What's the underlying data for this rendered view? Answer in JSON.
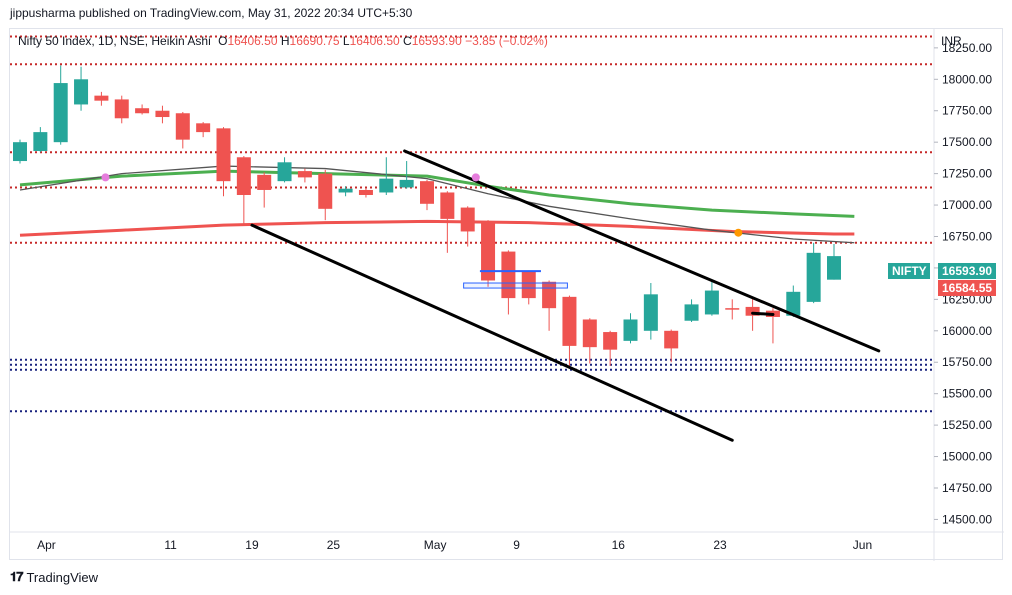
{
  "header": {
    "publisher_line": "jippusharma published on TradingView.com, May 31, 2022 20:34 UTC+5:30"
  },
  "legend": {
    "symbol": "Nifty 50 Index, 1D, NSE, Heikin Ashi",
    "open_label": "O",
    "open": "16406.50",
    "high_label": "H",
    "high": "16690.75",
    "low_label": "L",
    "low": "16406.50",
    "close_label": "C",
    "close": "16593.90",
    "change": "−3.85 (−0.02%)"
  },
  "axis": {
    "currency": "INR"
  },
  "price_labels": {
    "symbol_tag": "NIFTY",
    "last_price": "16593.90",
    "ha_close": "16584.55"
  },
  "footer": {
    "brand": "TradingView"
  },
  "colors": {
    "up": "#26a69a",
    "down": "#ef5350",
    "ma_red": "#ef5350",
    "ma_green": "#4caf50",
    "ma_gray": "#555555",
    "level_red": "#c62828",
    "level_blue": "#1a237e",
    "trendline": "#000000"
  },
  "chart_data": {
    "type": "candlestick",
    "subtype": "heikin-ashi",
    "ylim": [
      14400,
      18400
    ],
    "ytick_labels": [
      "18250.00",
      "18000.00",
      "17750.00",
      "17500.00",
      "17250.00",
      "17000.00",
      "16750.00",
      "16500.00",
      "16250.00",
      "16000.00",
      "15750.00",
      "15500.00",
      "15250.00",
      "15000.00",
      "14750.00",
      "14500.00"
    ],
    "yticks": [
      18250,
      18000,
      17750,
      17500,
      17250,
      17000,
      16750,
      16500,
      16250,
      16000,
      15750,
      15500,
      15250,
      15000,
      14750,
      14500
    ],
    "xtick_labels": [
      {
        "label": "Apr",
        "bar": 1.3
      },
      {
        "label": "11",
        "bar": 7.4
      },
      {
        "label": "19",
        "bar": 11.4
      },
      {
        "label": "25",
        "bar": 15.4
      },
      {
        "label": "May",
        "bar": 20.4
      },
      {
        "label": "9",
        "bar": 24.4
      },
      {
        "label": "16",
        "bar": 29.4
      },
      {
        "label": "23",
        "bar": 34.4
      },
      {
        "label": "Jun",
        "bar": 41.4
      }
    ],
    "candles": [
      {
        "o": 17350,
        "h": 17520,
        "l": 17330,
        "c": 17500
      },
      {
        "o": 17430,
        "h": 17620,
        "l": 17420,
        "c": 17580
      },
      {
        "o": 17500,
        "h": 18110,
        "l": 17480,
        "c": 17970
      },
      {
        "o": 17800,
        "h": 18100,
        "l": 17750,
        "c": 18000
      },
      {
        "o": 17870,
        "h": 17900,
        "l": 17790,
        "c": 17830
      },
      {
        "o": 17840,
        "h": 17870,
        "l": 17650,
        "c": 17690
      },
      {
        "o": 17770,
        "h": 17800,
        "l": 17720,
        "c": 17730
      },
      {
        "o": 17750,
        "h": 17790,
        "l": 17650,
        "c": 17700
      },
      {
        "o": 17730,
        "h": 17740,
        "l": 17450,
        "c": 17520
      },
      {
        "o": 17650,
        "h": 17660,
        "l": 17540,
        "c": 17580
      },
      {
        "o": 17610,
        "h": 17620,
        "l": 17070,
        "c": 17190
      },
      {
        "o": 17380,
        "h": 17390,
        "l": 16850,
        "c": 17080
      },
      {
        "o": 17240,
        "h": 17260,
        "l": 16980,
        "c": 17120
      },
      {
        "o": 17190,
        "h": 17380,
        "l": 17180,
        "c": 17340
      },
      {
        "o": 17270,
        "h": 17290,
        "l": 17180,
        "c": 17220
      },
      {
        "o": 17250,
        "h": 17280,
        "l": 16880,
        "c": 16970
      },
      {
        "o": 17100,
        "h": 17150,
        "l": 17070,
        "c": 17130
      },
      {
        "o": 17120,
        "h": 17130,
        "l": 17060,
        "c": 17080
      },
      {
        "o": 17100,
        "h": 17380,
        "l": 17080,
        "c": 17210
      },
      {
        "o": 17140,
        "h": 17350,
        "l": 17130,
        "c": 17200
      },
      {
        "o": 17190,
        "h": 17200,
        "l": 16960,
        "c": 17010
      },
      {
        "o": 17100,
        "h": 17110,
        "l": 16620,
        "c": 16890
      },
      {
        "o": 16980,
        "h": 16990,
        "l": 16670,
        "c": 16790
      },
      {
        "o": 16870,
        "h": 16880,
        "l": 16350,
        "c": 16400
      },
      {
        "o": 16630,
        "h": 16640,
        "l": 16130,
        "c": 16260
      },
      {
        "o": 16470,
        "h": 16480,
        "l": 16210,
        "c": 16260
      },
      {
        "o": 16390,
        "h": 16400,
        "l": 16000,
        "c": 16180
      },
      {
        "o": 16270,
        "h": 16280,
        "l": 15700,
        "c": 15880
      },
      {
        "o": 16090,
        "h": 16100,
        "l": 15740,
        "c": 15870
      },
      {
        "o": 15990,
        "h": 16000,
        "l": 15720,
        "c": 15850
      },
      {
        "o": 15920,
        "h": 16140,
        "l": 15900,
        "c": 16090
      },
      {
        "o": 16000,
        "h": 16380,
        "l": 15930,
        "c": 16290
      },
      {
        "o": 16000,
        "h": 16010,
        "l": 15750,
        "c": 15860
      },
      {
        "o": 16080,
        "h": 16250,
        "l": 16070,
        "c": 16210
      },
      {
        "o": 16130,
        "h": 16400,
        "l": 16120,
        "c": 16320
      },
      {
        "o": 16180,
        "h": 16250,
        "l": 16090,
        "c": 16170
      },
      {
        "o": 16190,
        "h": 16270,
        "l": 16000,
        "c": 16120
      },
      {
        "o": 16160,
        "h": 16180,
        "l": 15900,
        "c": 16110
      },
      {
        "o": 16120,
        "h": 16360,
        "l": 16110,
        "c": 16310
      },
      {
        "o": 16230,
        "h": 16700,
        "l": 16220,
        "c": 16620
      },
      {
        "o": 16406.5,
        "h": 16690.75,
        "l": 16406.5,
        "c": 16593.9
      }
    ],
    "moving_averages": [
      {
        "color": "ma_red",
        "points": [
          [
            0,
            16760
          ],
          [
            5,
            16800
          ],
          [
            10,
            16840
          ],
          [
            15,
            16860
          ],
          [
            20,
            16870
          ],
          [
            25,
            16860
          ],
          [
            30,
            16830
          ],
          [
            35,
            16790
          ],
          [
            40,
            16770
          ],
          [
            41,
            16770
          ]
        ]
      },
      {
        "color": "ma_green",
        "points": [
          [
            0,
            17160
          ],
          [
            5,
            17230
          ],
          [
            10,
            17270
          ],
          [
            15,
            17250
          ],
          [
            20,
            17230
          ],
          [
            23,
            17150
          ],
          [
            26,
            17080
          ],
          [
            30,
            17010
          ],
          [
            34,
            16960
          ],
          [
            38,
            16930
          ],
          [
            41,
            16910
          ]
        ]
      },
      {
        "color": "ma_gray",
        "points": [
          [
            0,
            17120
          ],
          [
            5,
            17250
          ],
          [
            10,
            17310
          ],
          [
            15,
            17290
          ],
          [
            20,
            17210
          ],
          [
            23,
            17090
          ],
          [
            26,
            16990
          ],
          [
            30,
            16890
          ],
          [
            34,
            16800
          ],
          [
            38,
            16730
          ],
          [
            41,
            16700
          ]
        ]
      }
    ],
    "markers": [
      {
        "bar": 4.2,
        "price": 17220,
        "color": "#e57ddc"
      },
      {
        "bar": 22.4,
        "price": 17220,
        "color": "#e57ddc"
      },
      {
        "bar": 35.3,
        "price": 16780,
        "color": "#ff9800"
      }
    ],
    "red_dotted_levels": [
      18340,
      18120,
      17420,
      17140,
      16700
    ],
    "blue_dotted_levels": [
      15770,
      15730,
      15690,
      15360
    ],
    "trendlines": [
      {
        "from": [
          18.9,
          17430
        ],
        "to": [
          42.2,
          15840
        ]
      },
      {
        "from": [
          11.4,
          16840
        ],
        "to": [
          35.0,
          15130
        ]
      },
      {
        "from": [
          36.0,
          16140
        ],
        "to": [
          37.0,
          16130
        ]
      }
    ],
    "rectangles": [
      {
        "x1": 21.8,
        "x2": 26.9,
        "p1": 16380,
        "p2": 16340,
        "color": "#2962ff"
      }
    ],
    "hline_segments": [
      {
        "x1": 22.6,
        "x2": 25.6,
        "price": 16475,
        "color": "#2962ff"
      }
    ]
  }
}
